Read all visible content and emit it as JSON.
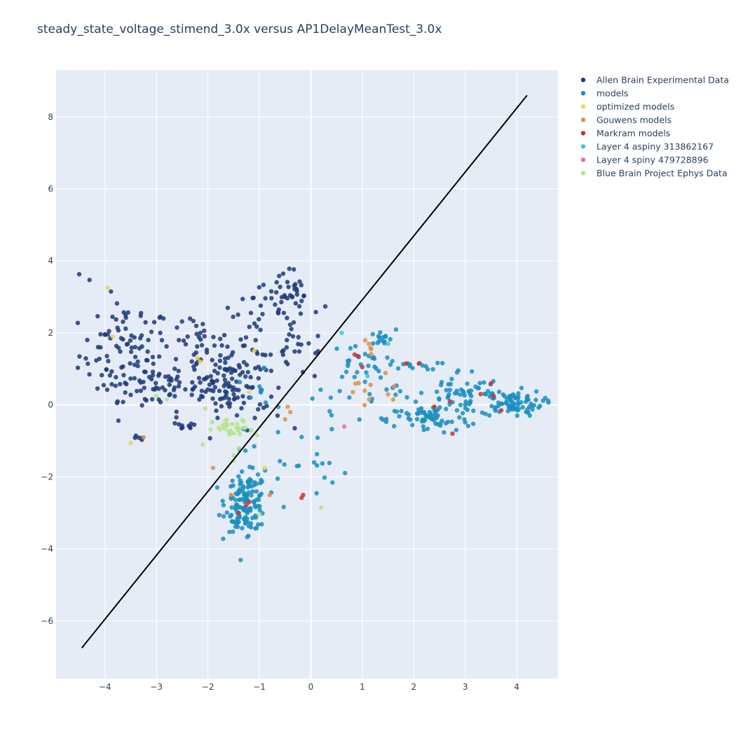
{
  "chart_data": {
    "type": "scatter",
    "title": "steady_state_voltage_stimend_3.0x versus AP1DelayMeanTest_3.0x",
    "xlabel": "",
    "ylabel": "",
    "xlim": [
      -4.95,
      4.8
    ],
    "ylim": [
      -7.6,
      9.3
    ],
    "xticks": [
      -4,
      -3,
      -2,
      -1,
      0,
      1,
      2,
      3,
      4
    ],
    "yticks": [
      -6,
      -4,
      -2,
      0,
      2,
      4,
      6,
      8
    ],
    "xtick_labels": [
      "−4",
      "−3",
      "−2",
      "−1",
      "0",
      "1",
      "2",
      "3",
      "4"
    ],
    "ytick_labels": [
      "−6",
      "−4",
      "−2",
      "0",
      "2",
      "4",
      "6",
      "8"
    ],
    "grid": true,
    "legend_position": "top-right",
    "reference_line": {
      "x": [
        -4.45,
        4.2
      ],
      "y": [
        -6.75,
        8.6
      ],
      "color": "#000000"
    },
    "series": [
      {
        "name": "Allen Brain Experimental Data",
        "color": "#1f3a7a",
        "clusters": [
          {
            "points": [
              [
                -4.5,
                3.63
              ],
              [
                -4.3,
                3.47
              ],
              [
                -4.0,
                1.95
              ],
              [
                -3.6,
                2.5
              ],
              [
                -3.3,
                2.55
              ]
            ]
          },
          {
            "cx": -3.6,
            "cy": 1.4,
            "sx": 0.45,
            "sy": 0.7,
            "n": 90
          },
          {
            "cx": -3.1,
            "cy": 0.5,
            "sx": 0.35,
            "sy": 0.3,
            "n": 40
          },
          {
            "cx": -2.2,
            "cy": 1.5,
            "sx": 0.4,
            "sy": 0.8,
            "n": 60
          },
          {
            "cx": -1.6,
            "cy": 0.6,
            "sx": 0.35,
            "sy": 0.45,
            "n": 90
          },
          {
            "cx": -1.1,
            "cy": 1.4,
            "sx": 0.35,
            "sy": 0.8,
            "n": 40
          },
          {
            "cx": -0.5,
            "cy": 3.0,
            "sx": 0.3,
            "sy": 0.4,
            "n": 40
          },
          {
            "cx": -0.2,
            "cy": 1.8,
            "sx": 0.3,
            "sy": 0.6,
            "n": 25
          },
          {
            "cx": -2.5,
            "cy": -0.6,
            "sx": 0.15,
            "sy": 0.06,
            "n": 10
          },
          {
            "cx": -3.35,
            "cy": -0.95,
            "sx": 0.1,
            "sy": 0.05,
            "n": 5
          }
        ]
      },
      {
        "name": "models",
        "color": "#1a8fc0",
        "clusters": [
          {
            "cx": -1.25,
            "cy": -2.7,
            "sx": 0.2,
            "sy": 0.4,
            "n": 130
          },
          {
            "cx": -1.45,
            "cy": -3.3,
            "sx": 0.1,
            "sy": 0.2,
            "n": 12
          },
          {
            "cx": 0.9,
            "cy": 1.2,
            "sx": 0.25,
            "sy": 0.25,
            "n": 25
          },
          {
            "cx": 1.35,
            "cy": 1.85,
            "sx": 0.15,
            "sy": 0.12,
            "n": 15
          },
          {
            "cx": 2.3,
            "cy": -0.4,
            "sx": 0.4,
            "sy": 0.2,
            "n": 60
          },
          {
            "cx": 2.9,
            "cy": 0.3,
            "sx": 0.4,
            "sy": 0.35,
            "n": 60
          },
          {
            "cx": 3.9,
            "cy": 0.05,
            "sx": 0.3,
            "sy": 0.18,
            "n": 80
          },
          {
            "cx": 2.0,
            "cy": 1.1,
            "sx": 0.25,
            "sy": 0.06,
            "n": 15
          },
          {
            "cx": 1.0,
            "cy": 0.2,
            "sx": 0.5,
            "sy": 0.4,
            "n": 20
          },
          {
            "cx": -0.3,
            "cy": -1.5,
            "sx": 0.5,
            "sy": 0.6,
            "n": 25
          },
          {
            "cx": -1.1,
            "cy": 0.5,
            "sx": 0.4,
            "sy": 0.5,
            "n": 10
          }
        ]
      },
      {
        "name": "optimized models",
        "color": "#f2d44e",
        "clusters": [
          {
            "points": [
              [
                -3.95,
                3.25
              ],
              [
                -3.85,
                1.9
              ],
              [
                -3.5,
                -1.05
              ],
              [
                -2.15,
                1.2
              ],
              [
                -2.2,
                1.3
              ],
              [
                -0.9,
                -1.75
              ],
              [
                -1.2,
                0.35
              ],
              [
                -1.1,
                1.5
              ]
            ]
          }
        ]
      },
      {
        "name": "Gouwens models",
        "color": "#e0904a",
        "clusters": [
          {
            "cx": 1.2,
            "cy": 0.35,
            "sx": 0.3,
            "sy": 0.25,
            "n": 10
          },
          {
            "cx": 1.15,
            "cy": 1.6,
            "sx": 0.1,
            "sy": 0.12,
            "n": 5
          },
          {
            "points": [
              [
                1.6,
                0.15
              ],
              [
                -0.5,
                -0.4
              ],
              [
                -0.4,
                -0.2
              ],
              [
                -1.55,
                -2.5
              ],
              [
                -0.8,
                -2.5
              ],
              [
                -1.9,
                -1.75
              ],
              [
                -3.25,
                -0.9
              ],
              [
                -0.45,
                -0.05
              ]
            ]
          }
        ]
      },
      {
        "name": "Markram models",
        "color": "#cc3333",
        "clusters": [
          {
            "points": [
              [
                0.85,
                1.4
              ],
              [
                0.92,
                1.35
              ],
              [
                1.85,
                1.15
              ],
              [
                2.1,
                1.15
              ],
              [
                2.7,
                0.1
              ],
              [
                2.75,
                -0.8
              ],
              [
                3.3,
                0.3
              ],
              [
                3.5,
                0.6
              ],
              [
                3.55,
                0.25
              ],
              [
                3.7,
                -0.15
              ],
              [
                1.0,
                1.05
              ],
              [
                -0.15,
                -2.5
              ],
              [
                -0.18,
                -2.58
              ],
              [
                -1.4,
                -3.0
              ],
              [
                -1.2,
                -2.7
              ],
              [
                -1.25,
                -2.78
              ],
              [
                2.4,
                -0.05
              ]
            ]
          }
        ]
      },
      {
        "name": "Layer 4 aspiny 313862167",
        "color": "#35c9e4",
        "clusters": [
          {
            "points": [
              [
                0.6,
                2.0
              ],
              [
                1.5,
                1.7
              ],
              [
                1.1,
                0.8
              ]
            ]
          }
        ]
      },
      {
        "name": "Layer 4 spiny 479728896",
        "color": "#f06f90",
        "clusters": [
          {
            "points": [
              [
                0.65,
                -0.6
              ]
            ]
          }
        ]
      },
      {
        "name": "Blue Brain Project Ephys Data",
        "color": "#b5e58a",
        "clusters": [
          {
            "cx": -1.5,
            "cy": -0.7,
            "sx": 0.2,
            "sy": 0.15,
            "n": 30
          },
          {
            "points": [
              [
                -2.1,
                -1.1
              ],
              [
                -1.4,
                -1.2
              ],
              [
                -1.5,
                -1.4
              ],
              [
                -1.0,
                -3.05
              ],
              [
                0.2,
                -2.85
              ],
              [
                -2.8,
                0.15
              ],
              [
                -3.0,
                0.25
              ],
              [
                -2.05,
                -0.1
              ],
              [
                -1.5,
                -1.55
              ]
            ]
          }
        ]
      }
    ]
  }
}
